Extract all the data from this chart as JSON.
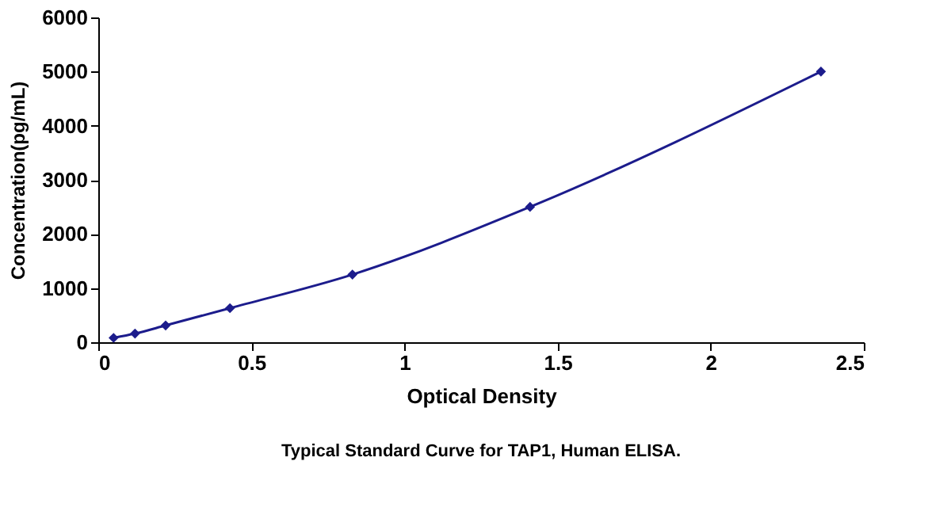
{
  "chart_data": {
    "type": "line",
    "xlabel": "Optical Density",
    "ylabel": "Concentration(pg/mL)",
    "annotations": [
      "Typical Standard Curve for TAP1, Human ELISA."
    ],
    "series": [
      {
        "color": "#1c1c8c",
        "x": [
          0.05,
          0.12,
          0.22,
          0.43,
          0.83,
          1.41,
          2.36
        ],
        "values": [
          80,
          160,
          310,
          630,
          1250,
          2500,
          5000
        ]
      }
    ],
    "xlim": [
      0,
      2.5
    ],
    "xticks": [
      0,
      0.5,
      1,
      1.5,
      2,
      2.5
    ],
    "ylim": [
      0,
      6000
    ],
    "yticks": [
      0,
      1000,
      2000,
      3000,
      4000,
      5000,
      6000
    ],
    "grid": false,
    "legend": false,
    "marker": "diamond",
    "line_style": "solid"
  }
}
